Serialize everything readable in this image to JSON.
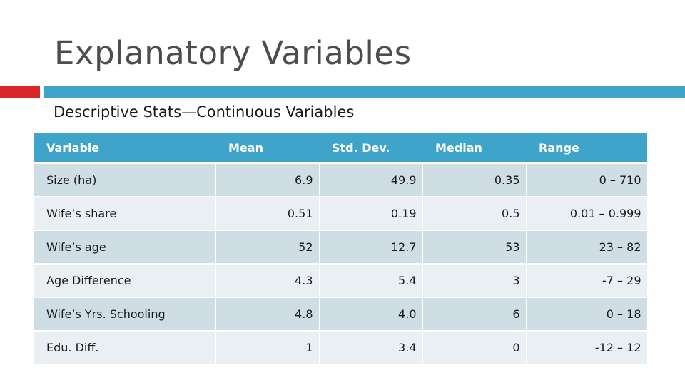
{
  "slide": {
    "title": "Explanatory Variables",
    "subtitle": "Descriptive Stats—Continuous Variables"
  },
  "colors": {
    "accent_red": "#d8262b",
    "accent_teal": "#3fa4c9",
    "row_dark": "#cfdde5",
    "row_light": "#e9eff3"
  },
  "table": {
    "headers": [
      "Variable",
      "Mean",
      "Std. Dev.",
      "Median",
      "Range"
    ],
    "rows": [
      [
        "Size (ha)",
        "6.9",
        "49.9",
        "0.35",
        "0 – 710"
      ],
      [
        "Wife’s share",
        "0.51",
        "0.19",
        "0.5",
        "0.01 – 0.999"
      ],
      [
        "Wife’s age",
        "52",
        "12.7",
        "53",
        "23 – 82"
      ],
      [
        "Age Difference",
        "4.3",
        "5.4",
        "3",
        "-7 – 29"
      ],
      [
        "Wife’s Yrs. Schooling",
        "4.8",
        "4.0",
        "6",
        "0 – 18"
      ],
      [
        "Edu. Diff.",
        "1",
        "3.4",
        "0",
        "-12 – 12"
      ]
    ]
  }
}
